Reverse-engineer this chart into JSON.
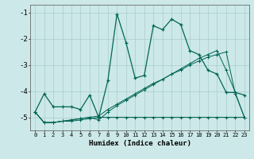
{
  "xlabel": "Humidex (Indice chaleur)",
  "bg_color": "#cce8e8",
  "grid_color": "#aacccc",
  "line_color": "#006655",
  "xlim": [
    -0.5,
    23.5
  ],
  "ylim": [
    -5.5,
    -0.7
  ],
  "yticks": [
    -5,
    -4,
    -3,
    -2,
    -1
  ],
  "xticks": [
    0,
    1,
    2,
    3,
    4,
    5,
    6,
    7,
    8,
    9,
    10,
    11,
    12,
    13,
    14,
    15,
    16,
    17,
    18,
    19,
    20,
    21,
    22,
    23
  ],
  "series1_x": [
    0,
    1,
    2,
    3,
    4,
    5,
    6,
    7,
    8,
    9,
    10,
    11,
    12,
    13,
    14,
    15,
    16,
    17,
    18,
    19,
    20,
    21,
    22,
    23
  ],
  "series1_y": [
    -4.8,
    -4.1,
    -4.6,
    -4.6,
    -4.6,
    -4.7,
    -4.15,
    -5.0,
    -3.6,
    -1.05,
    -2.15,
    -3.5,
    -3.4,
    -1.5,
    -1.65,
    -1.25,
    -1.45,
    -2.45,
    -2.6,
    -3.2,
    -3.35,
    -4.05,
    -4.05,
    -4.15
  ],
  "series2_x": [
    0,
    1,
    2,
    3,
    4,
    5,
    6,
    7,
    8,
    9,
    10,
    11,
    12,
    13,
    14,
    15,
    16,
    17,
    18,
    19,
    20,
    21,
    22,
    23
  ],
  "series2_y": [
    -4.8,
    -5.2,
    -5.2,
    -5.15,
    -5.15,
    -5.1,
    -5.05,
    -5.0,
    -5.0,
    -5.0,
    -5.0,
    -5.0,
    -5.0,
    -5.0,
    -5.0,
    -5.0,
    -5.0,
    -5.0,
    -5.0,
    -5.0,
    -5.0,
    -5.0,
    -5.0,
    -5.0
  ],
  "series3_x": [
    0,
    1,
    2,
    3,
    4,
    5,
    6,
    7,
    8,
    9,
    10,
    11,
    12,
    13,
    14,
    15,
    16,
    17,
    18,
    19,
    20,
    21,
    22,
    23
  ],
  "series3_y": [
    -4.8,
    -5.2,
    -5.2,
    -5.15,
    -5.1,
    -5.05,
    -5.0,
    -4.95,
    -4.7,
    -4.5,
    -4.3,
    -4.1,
    -3.9,
    -3.7,
    -3.55,
    -3.35,
    -3.2,
    -3.0,
    -2.85,
    -2.7,
    -2.6,
    -2.5,
    -4.1,
    -5.0
  ],
  "series4_x": [
    0,
    1,
    2,
    3,
    4,
    5,
    6,
    7,
    8,
    9,
    10,
    11,
    12,
    13,
    14,
    15,
    16,
    17,
    18,
    19,
    20,
    21,
    22,
    23
  ],
  "series4_y": [
    -4.8,
    -5.2,
    -5.2,
    -5.15,
    -5.1,
    -5.05,
    -5.0,
    -5.1,
    -4.8,
    -4.55,
    -4.35,
    -4.15,
    -3.95,
    -3.75,
    -3.55,
    -3.35,
    -3.15,
    -2.95,
    -2.75,
    -2.6,
    -2.45,
    -3.2,
    -4.05,
    -5.0
  ]
}
